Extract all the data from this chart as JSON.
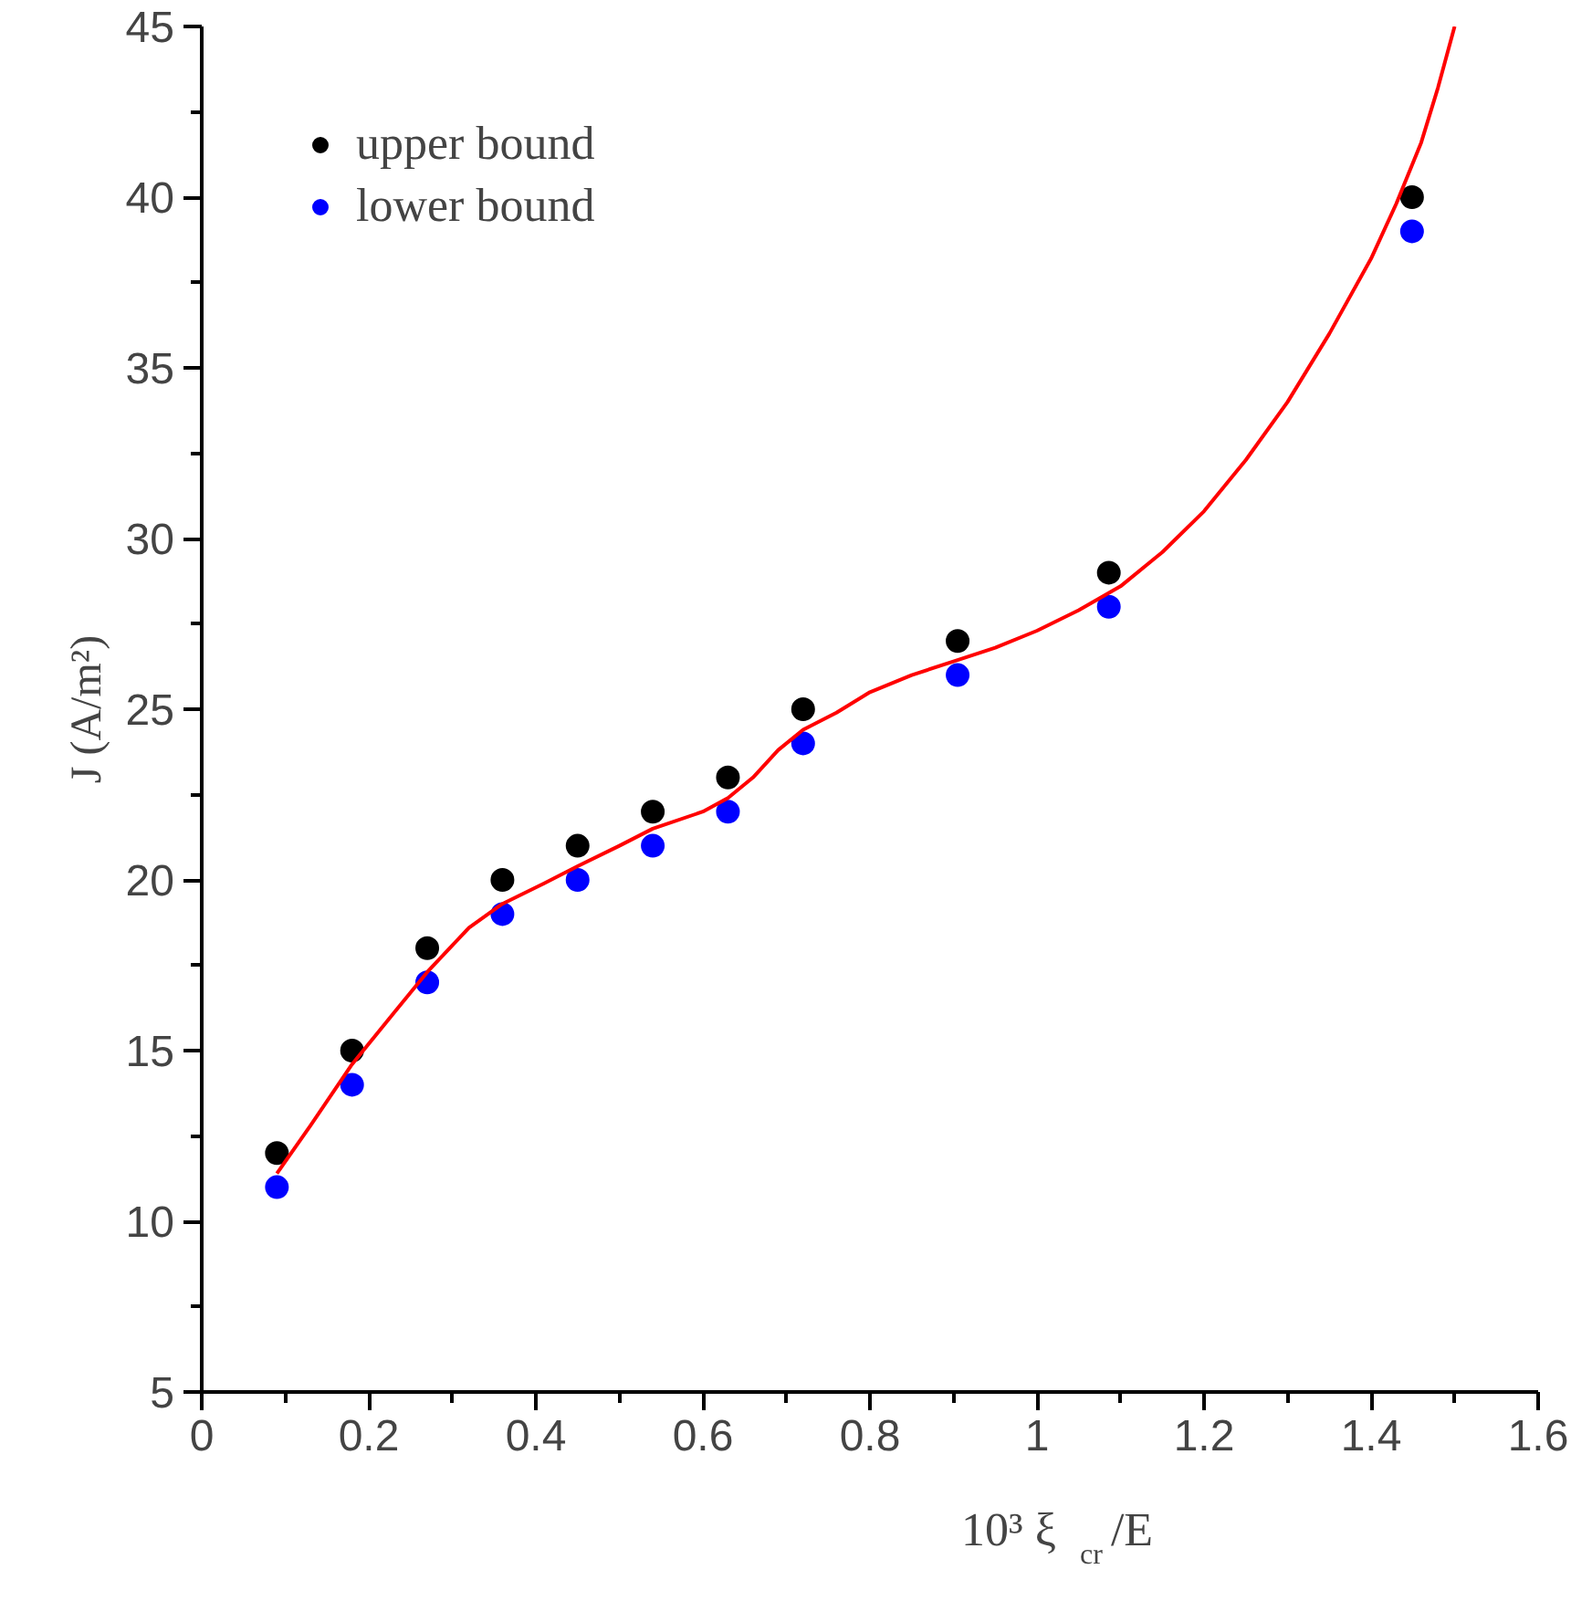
{
  "chart_data": {
    "type": "scatter",
    "xlabel": "10³ ξ$_{cr}$/E",
    "ylabel": "J (A/m²)",
    "xlim": [
      0,
      1.6
    ],
    "xticks": [
      0,
      0.2,
      0.4,
      0.6,
      0.8,
      1,
      1.2,
      1.4,
      1.6
    ],
    "ylim": [
      5,
      45
    ],
    "yticks": [
      5,
      10,
      15,
      20,
      25,
      30,
      35,
      40,
      45
    ],
    "grid": false,
    "legend": "top left",
    "marker": "circle",
    "series": [
      {
        "name": "upper bound",
        "color": "#000000",
        "x": [
          0.09,
          0.18,
          0.27,
          0.36,
          0.45,
          0.54,
          0.63,
          0.72,
          0.905,
          1.086,
          1.449
        ],
        "values": [
          12,
          15,
          18,
          20,
          21,
          22,
          23,
          25,
          27,
          29,
          40
        ]
      },
      {
        "name": "lower bound",
        "color": "#0000ff",
        "x": [
          0.09,
          0.18,
          0.27,
          0.36,
          0.45,
          0.54,
          0.63,
          0.72,
          0.905,
          1.086,
          1.449
        ],
        "values": [
          11,
          14,
          17,
          19,
          20,
          21,
          22,
          24,
          26,
          28,
          39
        ]
      },
      {
        "type": "line",
        "color": "#ff0000",
        "marker": "none",
        "x": [
          0.09,
          0.13,
          0.18,
          0.23,
          0.27,
          0.32,
          0.36,
          0.41,
          0.45,
          0.5,
          0.54,
          0.6,
          0.63,
          0.66,
          0.69,
          0.72,
          0.76,
          0.8,
          0.85,
          0.9,
          0.95,
          1.0,
          1.05,
          1.1,
          1.15,
          1.2,
          1.25,
          1.3,
          1.35,
          1.4,
          1.43,
          1.46,
          1.48,
          1.5
        ],
        "values": [
          11.4,
          12.8,
          14.6,
          16.1,
          17.3,
          18.6,
          19.3,
          19.9,
          20.4,
          21.0,
          21.5,
          22.0,
          22.4,
          23.0,
          23.8,
          24.4,
          24.9,
          25.5,
          26.0,
          26.4,
          26.8,
          27.3,
          27.9,
          28.6,
          29.6,
          30.8,
          32.3,
          34.0,
          36.0,
          38.2,
          39.8,
          41.6,
          43.2,
          45.0
        ]
      }
    ]
  }
}
